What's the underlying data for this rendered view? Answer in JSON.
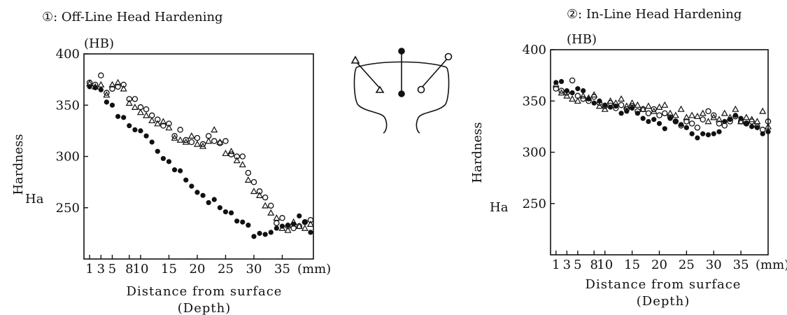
{
  "chart_data": [
    {
      "type": "scatter",
      "title": "①: Off-Line Head Hardening",
      "unit_label": "(HB)",
      "ylabel": "Hardness",
      "y_marker_label": "Ha",
      "xlabel_line1": "Distance from surface",
      "xlabel_line2": "(Depth)",
      "x_unit_label": "(mm)",
      "x_tick_labels": [
        "1",
        "3",
        "5",
        "8",
        "10",
        "15",
        "20",
        "25",
        "30",
        "35"
      ],
      "x_ticks": [
        1,
        3,
        5,
        8,
        10,
        15,
        20,
        25,
        30,
        35
      ],
      "y_ticks": [
        250,
        300,
        350,
        400
      ],
      "xlim": [
        0,
        40.5
      ],
      "ylim": [
        200,
        400
      ],
      "grid": false,
      "series": [
        {
          "marker": "filled-circle",
          "points": [
            [
              1,
              368
            ],
            [
              2,
              367
            ],
            [
              3,
              365
            ],
            [
              4,
              353
            ],
            [
              5,
              350
            ],
            [
              6,
              339
            ],
            [
              7,
              338
            ],
            [
              8,
              330
            ],
            [
              9,
              326
            ],
            [
              10,
              325
            ],
            [
              11,
              320
            ],
            [
              12,
              314
            ],
            [
              13,
              305
            ],
            [
              14,
              298
            ],
            [
              15,
              295
            ],
            [
              16,
              287
            ],
            [
              17,
              286
            ],
            [
              18,
              277
            ],
            [
              19,
              271
            ],
            [
              20,
              265
            ],
            [
              21,
              262
            ],
            [
              22,
              255
            ],
            [
              23,
              258
            ],
            [
              24,
              250
            ],
            [
              25,
              246
            ],
            [
              26,
              245
            ],
            [
              27,
              237
            ],
            [
              28,
              236
            ],
            [
              29,
              233
            ],
            [
              30,
              222
            ],
            [
              31,
              225
            ],
            [
              32,
              224
            ],
            [
              33,
              226
            ],
            [
              34,
              230
            ],
            [
              35,
              232
            ],
            [
              36,
              233
            ],
            [
              37,
              234
            ],
            [
              38,
              242
            ],
            [
              39,
              236
            ],
            [
              40,
              226
            ]
          ]
        },
        {
          "marker": "open-circle",
          "points": [
            [
              1,
              372
            ],
            [
              2,
              370
            ],
            [
              3,
              379
            ],
            [
              4,
              362
            ],
            [
              5,
              366
            ],
            [
              6,
              368
            ],
            [
              7,
              370
            ],
            [
              8,
              356
            ],
            [
              9,
              356
            ],
            [
              10,
              348
            ],
            [
              11,
              346
            ],
            [
              12,
              340
            ],
            [
              13,
              336
            ],
            [
              14,
              330
            ],
            [
              15,
              332
            ],
            [
              16,
              320
            ],
            [
              17,
              326
            ],
            [
              18,
              316
            ],
            [
              19,
              314
            ],
            [
              20,
              318
            ],
            [
              21,
              312
            ],
            [
              22,
              320
            ],
            [
              23,
              315
            ],
            [
              24,
              313
            ],
            [
              25,
              315
            ],
            [
              26,
              302
            ],
            [
              27,
              300
            ],
            [
              28,
              300
            ],
            [
              29,
              284
            ],
            [
              30,
              275
            ],
            [
              31,
              266
            ],
            [
              32,
              260
            ],
            [
              33,
              252
            ],
            [
              34,
              235
            ],
            [
              35,
              240
            ],
            [
              36,
              232
            ],
            [
              37,
              230
            ],
            [
              38,
              232
            ],
            [
              39,
              236
            ],
            [
              40,
              238
            ]
          ]
        },
        {
          "marker": "open-triangle",
          "points": [
            [
              1,
              371
            ],
            [
              2,
              368
            ],
            [
              3,
              370
            ],
            [
              4,
              360
            ],
            [
              5,
              370
            ],
            [
              6,
              372
            ],
            [
              7,
              366
            ],
            [
              8,
              352
            ],
            [
              9,
              348
            ],
            [
              10,
              343
            ],
            [
              11,
              340
            ],
            [
              12,
              335
            ],
            [
              13,
              332
            ],
            [
              14,
              334
            ],
            [
              15,
              328
            ],
            [
              16,
              318
            ],
            [
              17,
              316
            ],
            [
              18,
              314
            ],
            [
              19,
              320
            ],
            [
              20,
              312
            ],
            [
              21,
              310
            ],
            [
              22,
              315
            ],
            [
              23,
              326
            ],
            [
              24,
              314
            ],
            [
              25,
              303
            ],
            [
              26,
              305
            ],
            [
              27,
              296
            ],
            [
              28,
              292
            ],
            [
              29,
              277
            ],
            [
              30,
              266
            ],
            [
              31,
              262
            ],
            [
              32,
              252
            ],
            [
              33,
              245
            ],
            [
              34,
              240
            ],
            [
              35,
              230
            ],
            [
              36,
              228
            ],
            [
              37,
              236
            ],
            [
              38,
              232
            ],
            [
              39,
              230
            ],
            [
              40,
              234
            ]
          ]
        }
      ]
    },
    {
      "type": "scatter",
      "title": "②: In-Line Head Hardening",
      "unit_label": "(HB)",
      "ylabel": "Hardness",
      "y_marker_label": "Ha",
      "xlabel_line1": "Distance from surface",
      "xlabel_line2": "(Depth)",
      "x_unit_label": "(mm)",
      "x_tick_labels": [
        "1",
        "3",
        "5",
        "8",
        "10",
        "15",
        "20",
        "25",
        "30",
        "35"
      ],
      "x_ticks": [
        1,
        3,
        5,
        8,
        10,
        15,
        20,
        25,
        30,
        35
      ],
      "y_ticks": [
        250,
        300,
        350,
        400
      ],
      "xlim": [
        0,
        40
      ],
      "ylim": [
        200,
        400
      ],
      "grid": false,
      "series": [
        {
          "marker": "filled-circle",
          "points": [
            [
              1,
              368
            ],
            [
              2,
              369
            ],
            [
              3,
              360
            ],
            [
              4,
              358
            ],
            [
              5,
              362
            ],
            [
              6,
              360
            ],
            [
              7,
              352
            ],
            [
              8,
              348
            ],
            [
              9,
              350
            ],
            [
              10,
              346
            ],
            [
              11,
              344
            ],
            [
              12,
              345
            ],
            [
              13,
              338
            ],
            [
              14,
              340
            ],
            [
              15,
              343
            ],
            [
              16,
              338
            ],
            [
              17,
              333
            ],
            [
              18,
              330
            ],
            [
              19,
              332
            ],
            [
              20,
              328
            ],
            [
              21,
              323
            ],
            [
              22,
              333
            ],
            [
              23,
              330
            ],
            [
              24,
              327
            ],
            [
              25,
              324
            ],
            [
              26,
              318
            ],
            [
              27,
              314
            ],
            [
              28,
              318
            ],
            [
              29,
              317
            ],
            [
              30,
              318
            ],
            [
              31,
              320
            ],
            [
              32,
              330
            ],
            [
              33,
              332
            ],
            [
              34,
              336
            ],
            [
              35,
              333
            ],
            [
              36,
              328
            ],
            [
              37,
              325
            ],
            [
              38,
              324
            ],
            [
              39,
              318
            ],
            [
              40,
              320
            ]
          ]
        },
        {
          "marker": "open-circle",
          "points": [
            [
              1,
              362
            ],
            [
              2,
              360
            ],
            [
              3,
              358
            ],
            [
              4,
              370
            ],
            [
              5,
              355
            ],
            [
              6,
              352
            ],
            [
              7,
              350
            ],
            [
              8,
              354
            ],
            [
              9,
              348
            ],
            [
              10,
              345
            ],
            [
              11,
              348
            ],
            [
              12,
              343
            ],
            [
              13,
              346
            ],
            [
              14,
              342
            ],
            [
              15,
              345
            ],
            [
              16,
              340
            ],
            [
              17,
              342
            ],
            [
              18,
              338
            ],
            [
              19,
              342
            ],
            [
              20,
              336
            ],
            [
              21,
              338
            ],
            [
              22,
              334
            ],
            [
              23,
              330
            ],
            [
              24,
              326
            ],
            [
              25,
              330
            ],
            [
              26,
              328
            ],
            [
              27,
              324
            ],
            [
              28,
              332
            ],
            [
              29,
              340
            ],
            [
              30,
              336
            ],
            [
              31,
              328
            ],
            [
              32,
              326
            ],
            [
              33,
              330
            ],
            [
              34,
              335
            ],
            [
              35,
              330
            ],
            [
              36,
              328
            ],
            [
              37,
              330
            ],
            [
              38,
              325
            ],
            [
              39,
              322
            ],
            [
              40,
              330
            ]
          ]
        },
        {
          "marker": "open-triangle",
          "points": [
            [
              1,
              366
            ],
            [
              2,
              358
            ],
            [
              3,
              355
            ],
            [
              4,
              352
            ],
            [
              5,
              350
            ],
            [
              6,
              355
            ],
            [
              7,
              353
            ],
            [
              8,
              356
            ],
            [
              9,
              345
            ],
            [
              10,
              342
            ],
            [
              11,
              350
            ],
            [
              12,
              348
            ],
            [
              13,
              352
            ],
            [
              14,
              345
            ],
            [
              15,
              348
            ],
            [
              16,
              346
            ],
            [
              17,
              342
            ],
            [
              18,
              345
            ],
            [
              19,
              340
            ],
            [
              20,
              344
            ],
            [
              21,
              346
            ],
            [
              22,
              338
            ],
            [
              23,
              336
            ],
            [
              24,
              342
            ],
            [
              25,
              334
            ],
            [
              26,
              336
            ],
            [
              27,
              335
            ],
            [
              28,
              338
            ],
            [
              29,
              330
            ],
            [
              30,
              334
            ],
            [
              31,
              332
            ],
            [
              32,
              338
            ],
            [
              33,
              334
            ],
            [
              34,
              342
            ],
            [
              35,
              330
            ],
            [
              36,
              334
            ],
            [
              37,
              332
            ],
            [
              38,
              330
            ],
            [
              39,
              340
            ],
            [
              40,
              325
            ]
          ]
        }
      ]
    }
  ],
  "diagram": {
    "marker_legend": [
      "open-triangle",
      "filled-circle",
      "open-circle"
    ]
  }
}
